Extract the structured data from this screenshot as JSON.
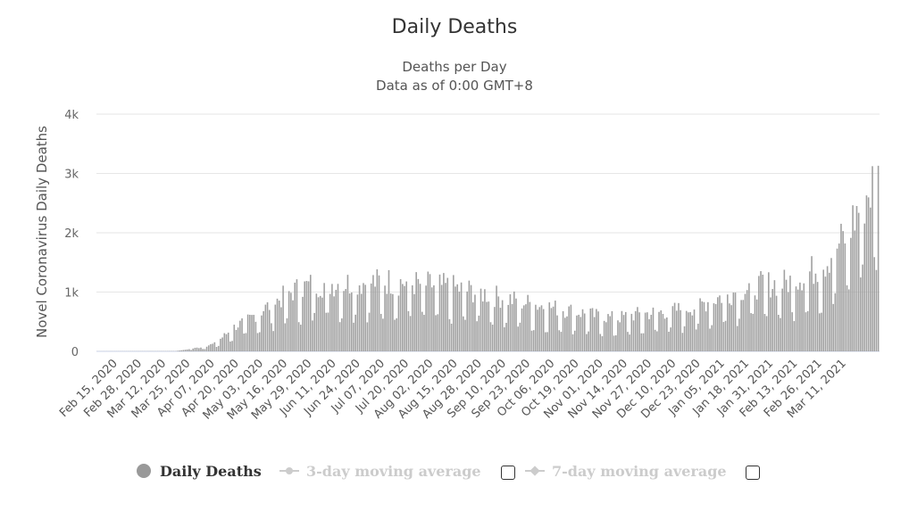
{
  "chart_data": {
    "type": "bar",
    "title": "Daily Deaths",
    "subtitle_line1": "Deaths per Day",
    "subtitle_line2": "Data as of 0:00 GMT+8",
    "ylabel": "Novel Coronavirus Daily Deaths",
    "xlabel": "",
    "ylim": [
      0,
      4000
    ],
    "yticks": [
      0,
      1000,
      2000,
      3000,
      4000
    ],
    "ytick_labels": [
      "0",
      "1k",
      "2k",
      "3k",
      "4k"
    ],
    "grid": true,
    "x_tick_labels": [
      "Feb 15, 2020",
      "Feb 28, 2020",
      "Mar 12, 2020",
      "Mar 25, 2020",
      "Apr 07, 2020",
      "Apr 20, 2020",
      "May 03, 2020",
      "May 16, 2020",
      "May 29, 2020",
      "Jun 11, 2020",
      "Jun 24, 2020",
      "Jul 07, 2020",
      "Jul 20, 2020",
      "Aug 02, 2020",
      "Aug 15, 2020",
      "Aug 28, 2020",
      "Sep 10, 2020",
      "Sep 23, 2020",
      "Oct 06, 2020",
      "Oct 19, 2020",
      "Nov 01, 2020",
      "Nov 14, 2020",
      "Nov 27, 2020",
      "Dec 10, 2020",
      "Dec 23, 2020",
      "Jan 05, 2021",
      "Jan 18, 2021",
      "Jan 31, 2021",
      "Feb 13, 2021",
      "Feb 26, 2021",
      "Mar 11, 2021"
    ],
    "series": [
      {
        "name": "Daily Deaths",
        "color": "#a0a0a0"
      }
    ],
    "monthly_profile": [
      {
        "period": "Feb 15, 2020 - Mar 25, 2020",
        "daily_values_approx": "0-10"
      },
      {
        "period": "Apr 07, 2020",
        "daily_values_approx": "50-150"
      },
      {
        "period": "Apr 20, 2020",
        "daily_values_approx": "150-400"
      },
      {
        "period": "May 03, 2020",
        "daily_values_approx": "300-800"
      },
      {
        "period": "May 29, 2020",
        "daily_values_approx": "600-1400"
      },
      {
        "period": "Jun 11, 2020 - Aug 15, 2020",
        "daily_values_approx": "550-1550"
      },
      {
        "period": "Sep 10, 2020",
        "daily_values_approx": "450-1150"
      },
      {
        "period": "Oct 19, 2020 - Nov 14, 2020",
        "daily_values_approx": "200-950"
      },
      {
        "period": "Dec 10, 2020",
        "daily_values_approx": "450-1100"
      },
      {
        "period": "Jan 05, 2021",
        "daily_values_approx": "600-1450"
      },
      {
        "period": "Feb 13, 2021",
        "daily_values_approx": "800-1800"
      },
      {
        "period": "Mar 11, 2021",
        "daily_values_approx": "1200-3130"
      }
    ],
    "peak": {
      "label": "Mar 2021",
      "value": 3130
    }
  },
  "legend": {
    "items": [
      {
        "label": "Daily Deaths",
        "color": "#999999",
        "text_color": "#333333",
        "active": true
      },
      {
        "label": "3-day moving average",
        "color": "#cccccc",
        "text_color": "#cccccc",
        "active": false
      },
      {
        "label": "7-day moving average",
        "color": "#cccccc",
        "text_color": "#cccccc",
        "active": false
      }
    ]
  }
}
